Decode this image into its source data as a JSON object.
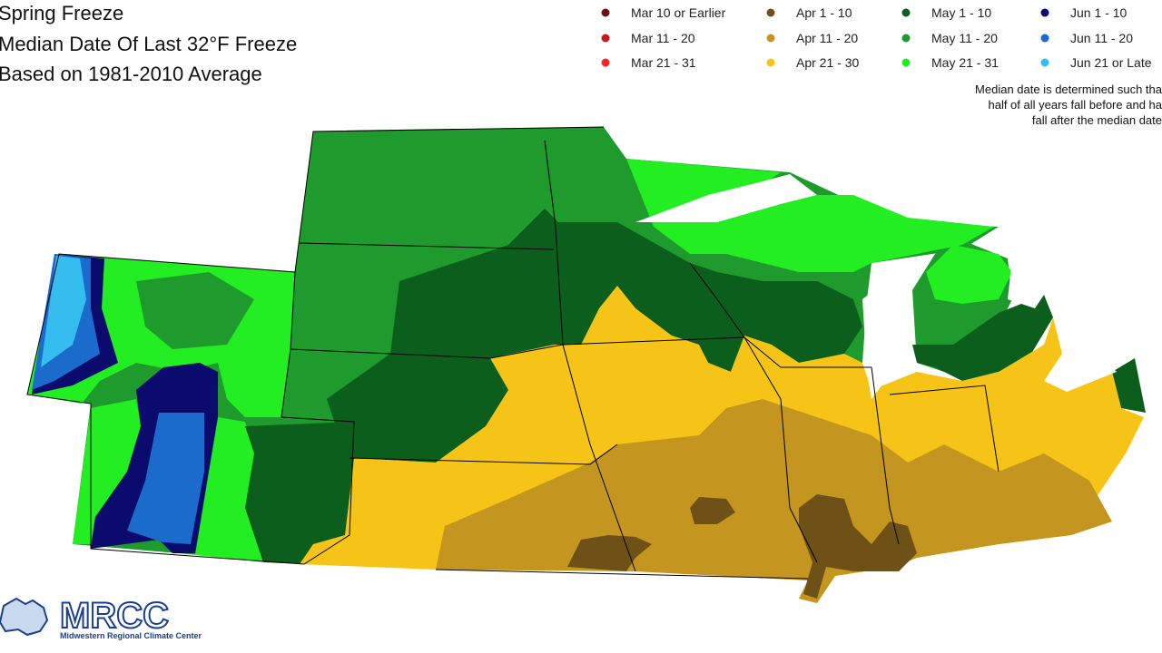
{
  "header": {
    "title_lines": [
      "Spring Freeze",
      "Median Date Of Last 32°F Freeze",
      "Based on 1981-2010 Average"
    ]
  },
  "legend": {
    "items": [
      {
        "label": "Mar 10 or Earlier",
        "color": "#6b1212"
      },
      {
        "label": "Mar 11 - 20",
        "color": "#c41a1a"
      },
      {
        "label": "Mar 21 - 31",
        "color": "#ff2222"
      },
      {
        "label": "Apr 1 - 10",
        "color": "#6e5116"
      },
      {
        "label": "Apr 11 - 20",
        "color": "#c4951f"
      },
      {
        "label": "Apr 21 - 30",
        "color": "#f5c417"
      },
      {
        "label": "May 1 - 10",
        "color": "#0c5e1c"
      },
      {
        "label": "May 11 - 20",
        "color": "#1f9a2c"
      },
      {
        "label": "May 21 - 31",
        "color": "#22ee22"
      },
      {
        "label": "Jun 1 - 10",
        "color": "#0b0b6e"
      },
      {
        "label": "Jun 11 - 20",
        "color": "#1b6bcc"
      },
      {
        "label": "Jun 21 or Late",
        "color": "#35bdf0"
      }
    ]
  },
  "note": {
    "lines": [
      "Median date is determined such tha",
      "half of all years fall before and ha",
      "fall after the median date"
    ]
  },
  "logo": {
    "name": "MRCC",
    "full_name": "Midwestern Regional Climate Center"
  }
}
